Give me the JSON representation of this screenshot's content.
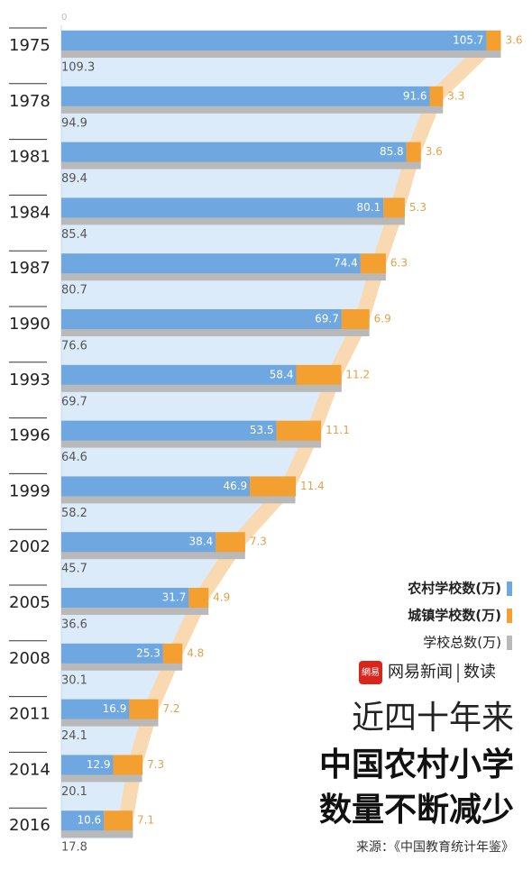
{
  "chart_data": {
    "type": "bar",
    "orientation": "horizontal",
    "stacked": true,
    "title": "近四十年来",
    "subtitle_lines": [
      "中国农村小学",
      "数量不断减少"
    ],
    "source": "来源：《中国教育统计年鉴》",
    "brand": {
      "logo_text": "網易",
      "name": "网易新闻",
      "section": "数读"
    },
    "categories": [
      "1975",
      "1978",
      "1981",
      "1984",
      "1987",
      "1990",
      "1993",
      "1996",
      "1999",
      "2002",
      "2005",
      "2008",
      "2011",
      "2014",
      "2016"
    ],
    "series": [
      {
        "name": "农村学校数(万)",
        "color": "#6fa8e0",
        "values": [
          105.7,
          91.6,
          85.8,
          80.1,
          74.4,
          69.7,
          58.4,
          53.5,
          46.9,
          38.4,
          31.7,
          25.3,
          16.9,
          12.9,
          10.6
        ]
      },
      {
        "name": "城镇学校数(万)",
        "color": "#f4a030",
        "values": [
          3.6,
          3.3,
          3.6,
          5.3,
          6.3,
          6.9,
          11.2,
          11.1,
          11.4,
          7.3,
          4.9,
          4.8,
          7.2,
          7.3,
          7.1
        ]
      }
    ],
    "total": {
      "name": "学校总数(万)",
      "color": "#b9b9b9",
      "values": [
        109.3,
        94.9,
        89.4,
        85.4,
        80.7,
        76.6,
        69.7,
        64.6,
        58.2,
        45.7,
        36.6,
        30.1,
        24.1,
        20.1,
        17.8
      ]
    },
    "xlim": [
      0,
      110
    ],
    "xticks": [
      0
    ]
  }
}
